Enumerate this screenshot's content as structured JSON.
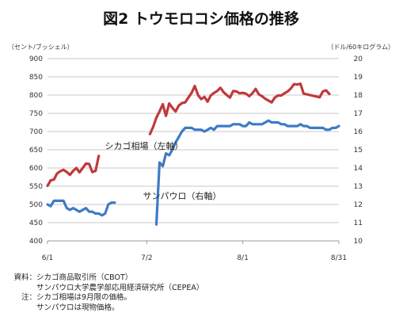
{
  "chart_data": {
    "type": "line",
    "title": "図2 トウモロコシ価格の推移",
    "y_left_unit": "（セント/ブッシェル）",
    "y_right_unit": "（ドル/60キログラム）",
    "y_left_ticks": [
      "400",
      "450",
      "500",
      "550",
      "600",
      "650",
      "700",
      "750",
      "800",
      "850",
      "900"
    ],
    "y_right_ticks": [
      "10",
      "11",
      "12",
      "13",
      "14",
      "15",
      "16",
      "17",
      "18",
      "19",
      "20"
    ],
    "ylim_left": [
      400,
      900
    ],
    "ylim_right": [
      10,
      20
    ],
    "x_ticks": [
      "6/1",
      "7/2",
      "8/1",
      "8/31"
    ],
    "x_tick_days": [
      1,
      32,
      62,
      92
    ],
    "xlim_days": [
      1,
      92
    ],
    "grid": "horizontal",
    "series": [
      {
        "name": "シカゴ相場（左軸）",
        "axis": "left",
        "color": "#c0393b",
        "segments": [
          [
            [
              1,
              551
            ],
            [
              2,
              566
            ],
            [
              3,
              568
            ],
            [
              4,
              585
            ],
            [
              5,
              591
            ],
            [
              6,
              595
            ],
            [
              7,
              589
            ],
            [
              8,
              581
            ],
            [
              9,
              592
            ],
            [
              10,
              600
            ],
            [
              11,
              588
            ],
            [
              12,
              600
            ],
            [
              13,
              612
            ],
            [
              14,
              611
            ],
            [
              15,
              589
            ],
            [
              16,
              592
            ],
            [
              17,
              633
            ]
          ],
          [
            [
              33,
              693
            ],
            [
              34,
              713
            ],
            [
              35,
              738
            ],
            [
              36,
              755
            ],
            [
              37,
              775
            ],
            [
              38,
              743
            ],
            [
              39,
              777
            ],
            [
              40,
              765
            ],
            [
              41,
              755
            ],
            [
              42,
              771
            ],
            [
              43,
              778
            ],
            [
              44,
              780
            ],
            [
              45,
              793
            ],
            [
              46,
              806
            ],
            [
              47,
              825
            ],
            [
              48,
              800
            ],
            [
              49,
              789
            ],
            [
              50,
              795
            ],
            [
              51,
              782
            ],
            [
              52,
              799
            ],
            [
              53,
              806
            ],
            [
              54,
              811
            ],
            [
              55,
              820
            ],
            [
              56,
              808
            ],
            [
              57,
              800
            ],
            [
              58,
              793
            ],
            [
              59,
              811
            ],
            [
              60,
              810
            ],
            [
              61,
              805
            ],
            [
              62,
              806
            ],
            [
              63,
              804
            ],
            [
              64,
              797
            ],
            [
              65,
              805
            ],
            [
              66,
              817
            ],
            [
              67,
              802
            ],
            [
              68,
              797
            ],
            [
              69,
              790
            ],
            [
              70,
              785
            ],
            [
              71,
              780
            ],
            [
              72,
              793
            ],
            [
              73,
              799
            ],
            [
              74,
              799
            ],
            [
              75,
              805
            ],
            [
              76,
              810
            ],
            [
              77,
              818
            ],
            [
              78,
              830
            ],
            [
              79,
              829
            ],
            [
              80,
              831
            ],
            [
              81,
              804
            ],
            [
              82,
              802
            ],
            [
              83,
              800
            ],
            [
              84,
              798
            ],
            [
              85,
              796
            ],
            [
              86,
              794
            ],
            [
              87,
              810
            ],
            [
              88,
              813
            ],
            [
              89,
              803
            ]
          ]
        ]
      },
      {
        "name": "サンパウロ（右軸）",
        "axis": "right",
        "color": "#3d7bc4",
        "segments": [
          [
            [
              1,
              12.0
            ],
            [
              2,
              11.9
            ],
            [
              3,
              12.2
            ],
            [
              4,
              12.2
            ],
            [
              5,
              12.2
            ],
            [
              6,
              12.2
            ],
            [
              7,
              11.8
            ],
            [
              8,
              11.7
            ],
            [
              9,
              11.8
            ],
            [
              10,
              11.7
            ],
            [
              11,
              11.6
            ],
            [
              12,
              11.7
            ],
            [
              13,
              11.8
            ],
            [
              14,
              11.6
            ],
            [
              15,
              11.6
            ],
            [
              16,
              11.5
            ],
            [
              17,
              11.5
            ],
            [
              18,
              11.4
            ],
            [
              19,
              11.5
            ],
            [
              20,
              12.0
            ],
            [
              21,
              12.1
            ],
            [
              22,
              12.1
            ]
          ],
          [
            [
              35,
              10.9
            ],
            [
              36,
              14.3
            ],
            [
              37,
              14.1
            ],
            [
              38,
              14.8
            ],
            [
              39,
              14.7
            ],
            [
              40,
              15.0
            ],
            [
              41,
              15.4
            ],
            [
              42,
              15.7
            ],
            [
              43,
              16.0
            ],
            [
              44,
              16.2
            ],
            [
              45,
              16.2
            ],
            [
              46,
              16.2
            ],
            [
              47,
              16.1
            ],
            [
              48,
              16.1
            ],
            [
              49,
              16.1
            ],
            [
              50,
              16.0
            ],
            [
              51,
              16.1
            ],
            [
              52,
              16.2
            ],
            [
              53,
              16.1
            ],
            [
              54,
              16.3
            ],
            [
              55,
              16.3
            ],
            [
              56,
              16.3
            ],
            [
              57,
              16.3
            ],
            [
              58,
              16.3
            ],
            [
              59,
              16.4
            ],
            [
              60,
              16.4
            ],
            [
              61,
              16.4
            ],
            [
              62,
              16.3
            ],
            [
              63,
              16.3
            ],
            [
              64,
              16.5
            ],
            [
              65,
              16.4
            ],
            [
              66,
              16.4
            ],
            [
              67,
              16.4
            ],
            [
              68,
              16.4
            ],
            [
              69,
              16.5
            ],
            [
              70,
              16.6
            ],
            [
              71,
              16.5
            ],
            [
              72,
              16.5
            ],
            [
              73,
              16.5
            ],
            [
              74,
              16.4
            ],
            [
              75,
              16.4
            ],
            [
              76,
              16.3
            ],
            [
              77,
              16.3
            ],
            [
              78,
              16.3
            ],
            [
              79,
              16.3
            ],
            [
              80,
              16.4
            ],
            [
              81,
              16.3
            ],
            [
              82,
              16.3
            ],
            [
              83,
              16.2
            ],
            [
              84,
              16.2
            ],
            [
              85,
              16.2
            ],
            [
              86,
              16.2
            ],
            [
              87,
              16.2
            ],
            [
              88,
              16.1
            ],
            [
              89,
              16.1
            ],
            [
              90,
              16.2
            ],
            [
              91,
              16.2
            ],
            [
              92,
              16.3
            ]
          ]
        ]
      }
    ]
  },
  "notes": {
    "source_label": "資料：",
    "source_line1": "シカゴ商品取引所（CBOT）",
    "source_line2": "サンパウロ大学農学部応用経済研究所（CEPEA）",
    "note_label": "注：",
    "note_line1": "シカゴ相場は9月限の価格。",
    "note_line2": "サンパウロは現物価格。"
  }
}
